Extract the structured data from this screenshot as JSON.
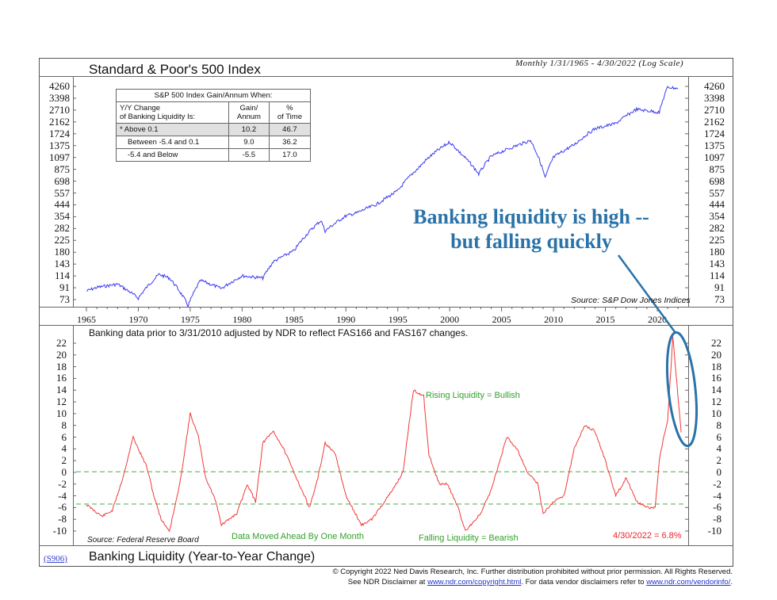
{
  "header": {
    "title": "Standard & Poor's 500 Index",
    "subtitle": "Monthly 1/31/1965 - 4/30/2022 (Log Scale)"
  },
  "top_panel": {
    "y_ticks": [
      "4260",
      "3398",
      "2710",
      "2162",
      "1724",
      "1375",
      "1097",
      "875",
      "698",
      "557",
      "444",
      "354",
      "282",
      "225",
      "180",
      "143",
      "114",
      "91",
      "73"
    ],
    "source": "Source: S&P Dow Jones Indices",
    "line_color": "#3b3bf0"
  },
  "x_axis": {
    "ticks": [
      "1965",
      "1970",
      "1975",
      "1980",
      "1985",
      "1990",
      "1995",
      "2000",
      "2005",
      "2010",
      "2015",
      "2020"
    ]
  },
  "stats_table": {
    "title": "S&P 500 Index Gain/Annum When:",
    "headers": [
      "Y/Y Change\nof Banking Liquidity Is:",
      "Gain/\nAnnum",
      "%\nof Time"
    ],
    "header_col1_line1": "Y/Y Change",
    "header_col1_line2": "of Banking Liquidity Is:",
    "header_col2_line1": "Gain/",
    "header_col2_line2": "Annum",
    "header_col3_line1": "%",
    "header_col3_line2": "of Time",
    "rows": [
      {
        "label": "* Above 0.1",
        "gain": "10.2",
        "pct": "46.7"
      },
      {
        "label": "Between -5.4 and 0.1",
        "gain": "9.0",
        "pct": "36.2"
      },
      {
        "label": "-5.4 and Below",
        "gain": "-5.5",
        "pct": "17.0"
      }
    ]
  },
  "callout": {
    "line1": "Banking liquidity is high --",
    "line2": "but falling quickly",
    "color": "#2a72a8"
  },
  "bottom_panel": {
    "note": "Banking data prior to 3/31/2010 adjusted by NDR to reflect FAS166 and FAS167 changes.",
    "y_ticks": [
      "22",
      "20",
      "18",
      "16",
      "14",
      "12",
      "10",
      "8",
      "6",
      "4",
      "2",
      "0",
      "-2",
      "-4",
      "-6",
      "-8",
      "-10"
    ],
    "rising_label": "Rising Liquidity = Bullish",
    "falling_label": "Falling Liquidity = Bearish",
    "moved_label": "Data Moved Ahead By One Month",
    "source": "Source: Federal Reserve Board",
    "latest_value": "4/30/2022 = 6.8%",
    "line_color": "#f03a3a",
    "threshold_color": "#5cb85c"
  },
  "footer": {
    "code": "(S906)",
    "title": "Banking Liquidity (Year-to-Year Change)",
    "copyright": "© Copyright 2022 Ned Davis Research, Inc.  Further distribution prohibited without prior permission.  All Rights Reserved.",
    "disclaimer_prefix": "See NDR Disclaimer at ",
    "disclaimer_link1": "www.ndr.com/copyright.html",
    "disclaimer_mid": ". For data vendor disclaimers refer to ",
    "disclaimer_link2": "www.ndr.com/vendorinfo/",
    "disclaimer_suffix": "."
  },
  "chart_data": [
    {
      "type": "line",
      "title": "Standard & Poor's 500 Index",
      "subtitle": "Monthly 1/31/1965 - 4/30/2022 (Log Scale)",
      "xlabel": "",
      "ylabel": "",
      "yscale": "log",
      "ylim": [
        73,
        4260
      ],
      "x": [
        1965,
        1966,
        1968,
        1970,
        1972,
        1973,
        1974.8,
        1976,
        1978,
        1980,
        1982,
        1983,
        1985,
        1987.6,
        1988,
        1990,
        1991,
        1993,
        1995,
        1997,
        1998,
        2000,
        2001,
        2002.8,
        2004,
        2007.8,
        2009.2,
        2010,
        2012,
        2014,
        2016,
        2018,
        2020.2,
        2021,
        2022
      ],
      "values": [
        86,
        92,
        98,
        75,
        118,
        110,
        65,
        105,
        90,
        115,
        110,
        150,
        185,
        330,
        270,
        360,
        380,
        450,
        580,
        900,
        1100,
        1470,
        1200,
        800,
        1120,
        1520,
        740,
        1100,
        1400,
        1900,
        2100,
        2750,
        2600,
        4200,
        4100
      ],
      "series": [
        {
          "name": "S&P 500 Index",
          "color": "#3b3bf0"
        }
      ],
      "source": "Source: S&P Dow Jones Indices"
    },
    {
      "type": "line",
      "title": "Banking Liquidity (Year-to-Year Change)",
      "xlabel": "",
      "ylabel": "",
      "ylim": [
        -10,
        22
      ],
      "x": [
        1965,
        1966.5,
        1967.5,
        1968.5,
        1969.5,
        1970,
        1970.8,
        1971.5,
        1972.2,
        1973,
        1974,
        1975,
        1975.8,
        1976.5,
        1977.5,
        1978,
        1979.5,
        1980.5,
        1981.3,
        1982,
        1983,
        1984,
        1985.5,
        1986.5,
        1987.3,
        1988,
        1989,
        1990,
        1991.5,
        1992.5,
        1993.7,
        1994.5,
        1995.5,
        1996.5,
        1997.5,
        1998,
        1999,
        1999.8,
        2000.8,
        2001.5,
        2003,
        2004,
        2005.5,
        2006.5,
        2007.5,
        2008.5,
        2009,
        2010,
        2011,
        2012,
        2013,
        2014,
        2015,
        2016,
        2017,
        2018,
        2019,
        2019.8,
        2020.2,
        2020.5,
        2021,
        2021.5,
        2022.3
      ],
      "values": [
        -5.5,
        -7.5,
        -6.5,
        -1,
        6,
        4,
        1,
        -4,
        -8,
        -10,
        -2,
        10,
        6,
        -1,
        -5,
        -9,
        -7,
        -2,
        -5,
        5,
        7,
        4,
        -2,
        -6,
        -1,
        5,
        3,
        -4,
        -9,
        -8,
        -5,
        -3,
        0,
        14,
        13,
        3,
        -2,
        -2,
        -6,
        -10,
        -7,
        -3,
        6,
        4,
        0,
        -2,
        -7,
        -5,
        -4,
        4,
        8,
        7,
        2,
        -4,
        -1,
        -5,
        -6,
        -6,
        2,
        5,
        9,
        23,
        6.8
      ],
      "series": [
        {
          "name": "Banking Liquidity Y/Y %",
          "color": "#f03a3a"
        }
      ],
      "reference_lines": [
        {
          "y": 0.1,
          "style": "dashed",
          "color": "#5cb85c"
        },
        {
          "y": -5.4,
          "style": "dashed",
          "color": "#5cb85c"
        }
      ],
      "annotations": [
        "Rising Liquidity = Bullish",
        "Falling Liquidity = Bearish",
        "Data Moved Ahead By One Month",
        "4/30/2022 = 6.8%",
        "Banking liquidity is high -- but falling quickly"
      ],
      "source": "Source: Federal Reserve Board"
    }
  ]
}
